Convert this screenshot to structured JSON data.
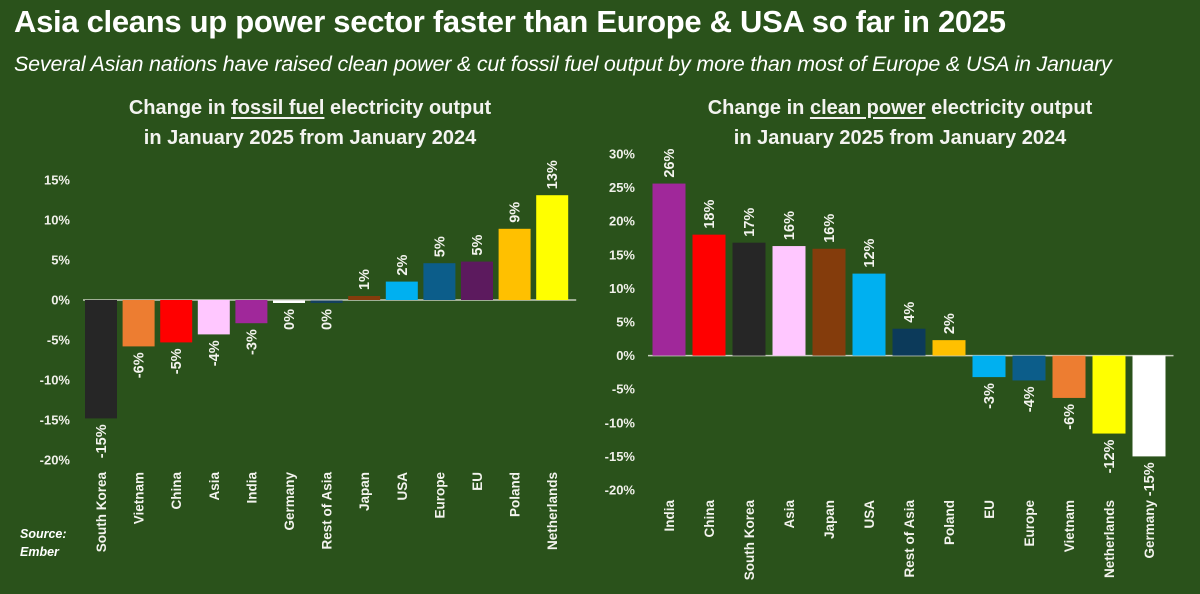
{
  "header": {
    "title": "Asia cleans up power sector faster than Europe & USA so far in 2025",
    "subtitle": "Several Asian nations have raised clean power & cut fossil fuel output by more than most of Europe & USA in January"
  },
  "source": {
    "line1": "Source:",
    "line2": "Ember"
  },
  "colors": {
    "background": "#2a521b",
    "text": "#ffffff",
    "axis_line": "#c8cec0"
  },
  "chart_data": [
    {
      "type": "bar",
      "title_parts": [
        "Change in ",
        "fossil fuel",
        " electricity output"
      ],
      "title_line2": "in January 2025 from January 2024",
      "underlined_phrase": "fossil fuel",
      "xlabel": "",
      "ylabel": "",
      "ylim": [
        -20,
        15
      ],
      "yticks": [
        15,
        10,
        5,
        0,
        -5,
        -10,
        -15,
        -20
      ],
      "ytick_labels": [
        "15%",
        "10%",
        "5%",
        "0%",
        "-5%",
        "-10%",
        "-15%",
        "-20%"
      ],
      "grid": false,
      "categories": [
        "South Korea",
        "Vietnam",
        "China",
        "Asia",
        "India",
        "Germany",
        "Rest of Asia",
        "Japan",
        "USA",
        "Europe",
        "EU",
        "Poland",
        "Netherlands"
      ],
      "values": [
        -14.8,
        -5.8,
        -5.3,
        -4.3,
        -2.9,
        -0.3,
        -0.1,
        0.5,
        2.3,
        4.6,
        4.8,
        8.9,
        13.1
      ],
      "data_labels": [
        "-15%",
        "-6%",
        "-5%",
        "-4%",
        "-3%",
        "0%",
        "0%",
        "1%",
        "2%",
        "5%",
        "5%",
        "9%",
        "13%"
      ],
      "bar_colors": [
        "#262626",
        "#ed7d31",
        "#ff0000",
        "#ffc7ff",
        "#a0289a",
        "#ffffff",
        "#14405e",
        "#843c0c",
        "#00b0f0",
        "#0c5d8a",
        "#5c1a5e",
        "#ffc000",
        "#ffff00"
      ]
    },
    {
      "type": "bar",
      "title_parts": [
        "Change in ",
        "clean power",
        " electricity output"
      ],
      "title_line2": "in January 2025 from January 2024",
      "underlined_phrase": "clean power",
      "xlabel": "",
      "ylabel": "",
      "ylim": [
        -20,
        30
      ],
      "yticks": [
        30,
        25,
        20,
        15,
        10,
        5,
        0,
        -5,
        -10,
        -15,
        -20
      ],
      "ytick_labels": [
        "30%",
        "25%",
        "20%",
        "15%",
        "10%",
        "5%",
        "0%",
        "-5%",
        "-10%",
        "-15%",
        "-20%"
      ],
      "grid": false,
      "categories": [
        "India",
        "China",
        "South Korea",
        "Asia",
        "Japan",
        "USA",
        "Rest of Asia",
        "Poland",
        "EU",
        "Europe",
        "Vietnam",
        "Netherlands",
        "Germany"
      ],
      "values": [
        25.6,
        18.0,
        16.8,
        16.3,
        15.9,
        12.2,
        4.0,
        2.3,
        -3.2,
        -3.7,
        -6.3,
        -11.6,
        -15.0
      ],
      "data_labels": [
        "26%",
        "18%",
        "17%",
        "16%",
        "16%",
        "12%",
        "4%",
        "2%",
        "-3%",
        "-4%",
        "-6%",
        "-12%",
        "-15%"
      ],
      "bar_colors": [
        "#a0289a",
        "#ff0000",
        "#262626",
        "#ffc7ff",
        "#843c0c",
        "#00b0f0",
        "#0c3a5a",
        "#ffc000",
        "#00b0f0",
        "#0c5d8a",
        "#ed7d31",
        "#ffff00",
        "#ffffff"
      ]
    }
  ]
}
